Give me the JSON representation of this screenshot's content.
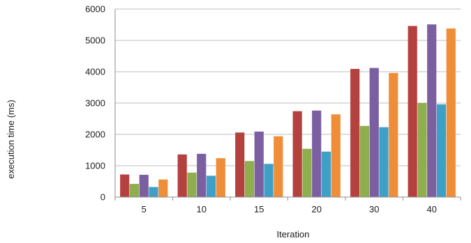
{
  "chart_data": {
    "type": "bar",
    "title": "",
    "xlabel": "Iteration",
    "ylabel": "execution time (ms)",
    "categories": [
      "5",
      "10",
      "15",
      "20",
      "30",
      "40"
    ],
    "ylim": [
      0,
      6000
    ],
    "yticks": [
      0,
      1000,
      2000,
      3000,
      4000,
      5000,
      6000
    ],
    "grid": true,
    "legend": "none",
    "series": [
      {
        "color": "#b5413f",
        "values": [
          720,
          1360,
          2060,
          2740,
          4090,
          5460
        ]
      },
      {
        "color": "#8fae4e",
        "values": [
          420,
          780,
          1150,
          1540,
          2270,
          3000
        ]
      },
      {
        "color": "#7b5fa0",
        "values": [
          710,
          1380,
          2090,
          2760,
          4120,
          5510
        ]
      },
      {
        "color": "#3ea0c6",
        "values": [
          320,
          680,
          1060,
          1450,
          2230,
          2960
        ]
      },
      {
        "color": "#f08d38",
        "values": [
          560,
          1240,
          1940,
          2640,
          3960,
          5380
        ]
      }
    ]
  }
}
